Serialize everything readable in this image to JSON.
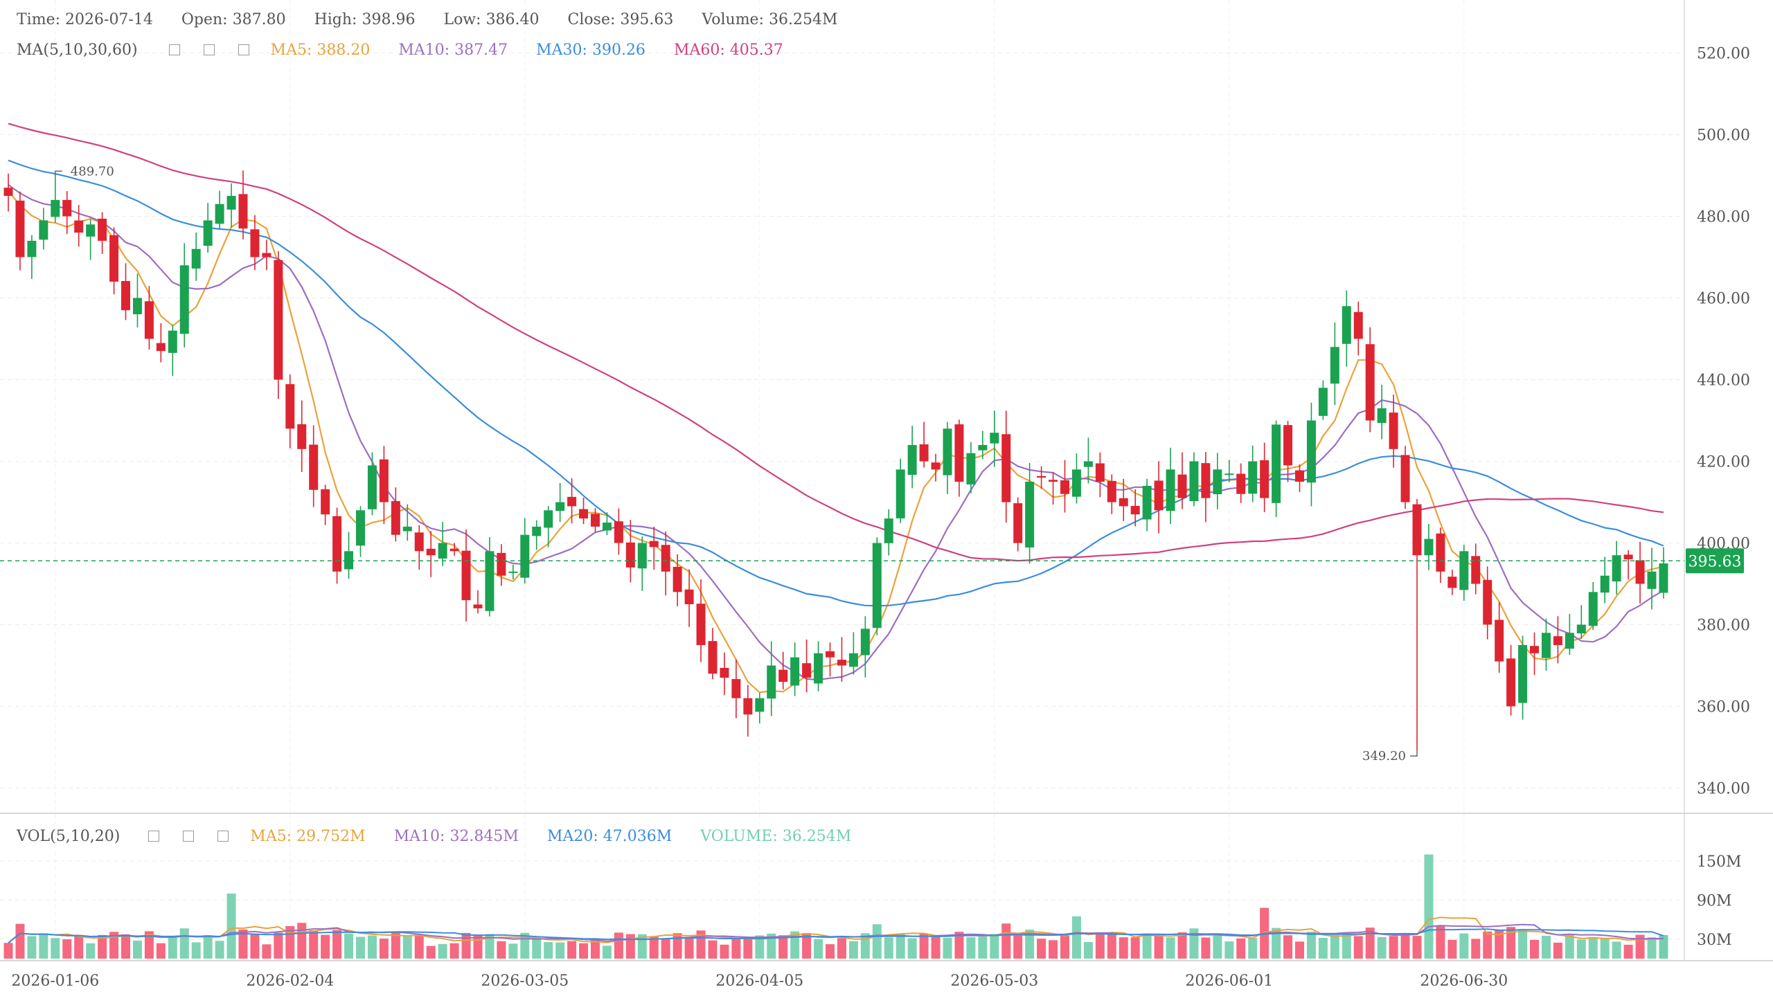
{
  "header": {
    "time_label": "Time:",
    "time": "2026-07-14",
    "open_label": "Open:",
    "open": "387.80",
    "high_label": "High:",
    "high": "398.96",
    "low_label": "Low:",
    "low": "386.40",
    "close_label": "Close:",
    "close": "395.63",
    "volume_label": "Volume:",
    "volume": "36.254M"
  },
  "ma_legend": {
    "title": "MA(5,10,30,60)",
    "ma5": "MA5: 388.20",
    "ma10": "MA10: 387.47",
    "ma30": "MA30: 390.26",
    "ma60": "MA60: 405.37"
  },
  "vol_legend": {
    "title": "VOL(5,10,20)",
    "ma5": "MA5: 29.752M",
    "ma10": "MA10: 32.845M",
    "ma20": "MA20: 47.036M",
    "volume": "VOLUME: 36.254M"
  },
  "colors": {
    "up": "#1aa251",
    "down": "#dd2531",
    "vol_up": "#7fd3b5",
    "vol_down": "#f6687f",
    "ma5": "#e8a33a",
    "ma10": "#9b6fc0",
    "ma30": "#3a8ddc",
    "ma60": "#d0407f",
    "last_price": "#1aa251",
    "vol_last": "#73cfae"
  },
  "chart_data": {
    "type": "candlestick",
    "price_axis": {
      "min": 340,
      "max": 520,
      "ticks": [
        "520.00",
        "500.00",
        "480.00",
        "460.00",
        "440.00",
        "420.00",
        "400.00",
        "380.00",
        "360.00",
        "340.00"
      ]
    },
    "volume_axis": {
      "ticks": [
        "150M",
        "90M",
        "30M"
      ],
      "tick_values": [
        150,
        90,
        30
      ],
      "max": 165
    },
    "x_labels": [
      "2026-01-06",
      "2026-02-04",
      "2026-03-05",
      "2026-04-05",
      "2026-05-03",
      "2026-06-01",
      "2026-06-30"
    ],
    "x_label_index": [
      4,
      24,
      44,
      64,
      84,
      104,
      124
    ],
    "last_price": "395.63",
    "last_price_value": 395.63,
    "max_mark": {
      "index": 4,
      "value": 489.7,
      "label": "489.70"
    },
    "min_mark": {
      "index": 120,
      "value": 349.2,
      "label": "349.20"
    },
    "close": [
      485,
      470,
      474,
      479,
      484,
      480,
      476,
      478,
      474,
      464,
      457,
      460,
      450,
      447,
      452,
      468,
      472,
      479,
      483,
      485,
      477,
      470,
      470,
      440,
      428,
      423,
      413,
      407,
      393,
      398,
      408,
      419,
      410,
      402,
      404,
      398,
      397,
      400,
      398,
      386,
      384,
      398,
      392,
      393,
      402,
      404,
      408,
      410,
      409,
      406,
      404,
      405,
      400,
      394,
      400,
      399,
      393,
      388,
      385,
      375,
      368,
      367,
      362,
      358,
      362,
      370,
      366,
      372,
      367,
      373,
      372,
      370,
      373,
      379,
      400,
      406,
      418,
      424,
      420,
      418,
      428,
      415,
      422,
      424,
      427,
      410,
      400,
      415,
      416,
      415,
      412,
      418,
      420,
      415,
      410,
      409,
      407,
      414,
      408,
      418,
      411,
      420,
      411,
      418,
      417,
      412,
      420,
      411,
      429,
      419,
      415,
      430,
      438,
      448,
      458,
      450,
      430,
      433,
      423,
      410,
      397,
      401,
      393,
      389,
      398,
      390,
      380,
      371,
      360,
      375,
      373,
      378,
      375,
      378,
      380,
      388,
      392,
      397,
      396,
      390,
      393,
      395
    ]
  }
}
